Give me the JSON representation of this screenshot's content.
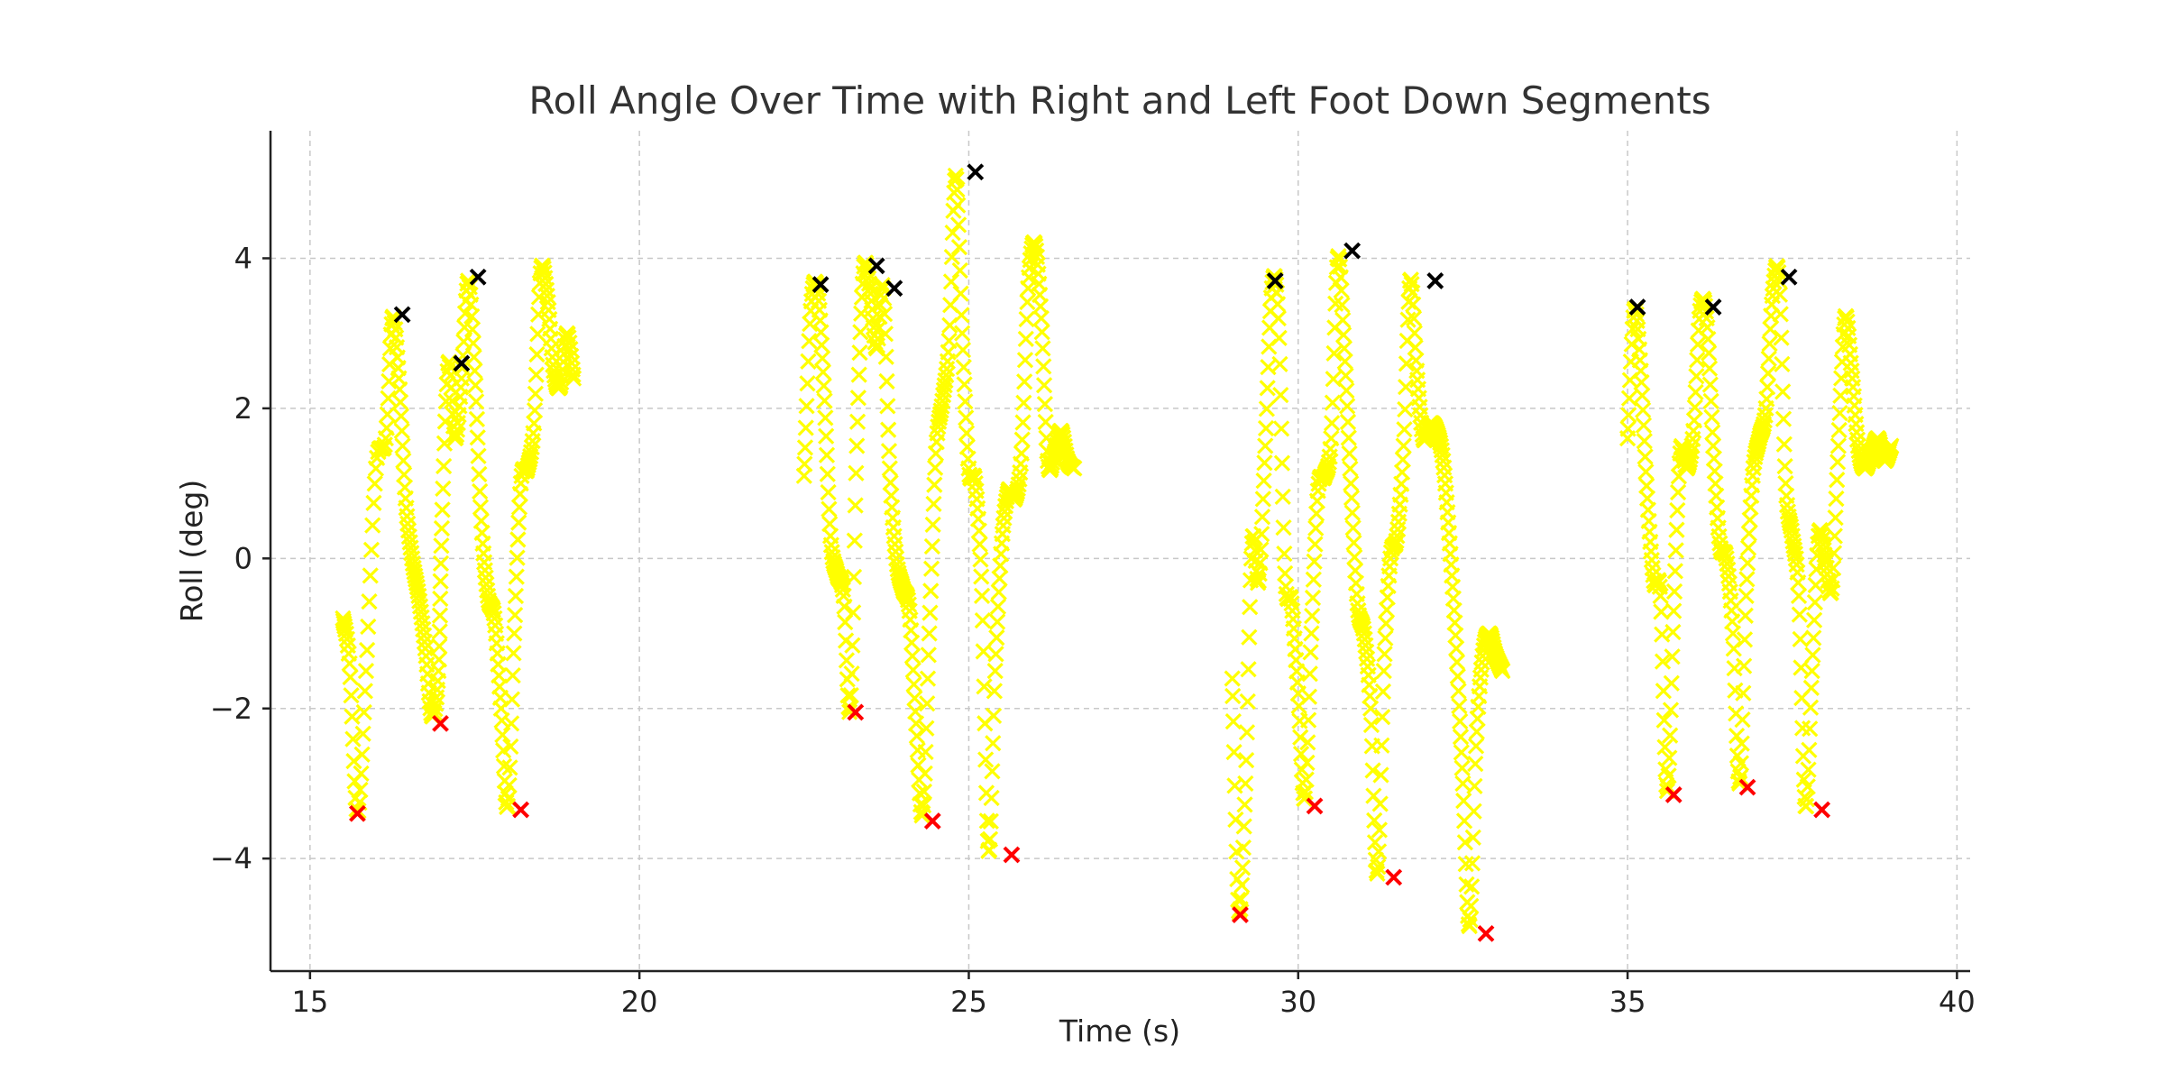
{
  "chart_data": {
    "type": "scatter",
    "title": "Roll Angle Over Time with Right and Left Foot Down Segments",
    "xlabel": "Time (s)",
    "ylabel": "Roll (deg)",
    "xlim": [
      14.4,
      40.2
    ],
    "ylim": [
      -5.5,
      5.7
    ],
    "xticks": [
      15,
      20,
      25,
      30,
      35,
      40
    ],
    "yticks": [
      -4,
      -2,
      0,
      2,
      4
    ],
    "ytick_labels": [
      "−4",
      "−2",
      "0",
      "2",
      "4"
    ],
    "grid": true,
    "marker": "x",
    "colors": {
      "roll": "#ffff00",
      "right_foot_down": "#ff0000",
      "left_foot_down": "#000000"
    },
    "segments": [
      {
        "x": [
          15.5,
          15.6,
          15.72,
          15.85,
          16.0,
          16.15,
          16.25,
          16.35,
          16.45,
          16.55,
          16.65,
          16.75,
          16.85,
          16.95,
          17.0,
          17.1,
          17.2,
          17.3,
          17.4,
          17.5,
          17.6,
          17.7,
          17.8,
          17.9,
          18.0,
          18.1,
          18.2,
          18.3,
          18.4,
          18.5,
          18.6,
          18.7,
          18.8,
          18.9,
          19.0
        ],
        "y": [
          -0.8,
          -1.4,
          -3.4,
          -1.5,
          1.2,
          1.6,
          3.2,
          2.4,
          0.8,
          0.0,
          -0.5,
          -1.2,
          -2.1,
          -1.5,
          0.4,
          2.6,
          1.6,
          2.4,
          3.7,
          2.5,
          0.5,
          -0.5,
          -0.8,
          -2.0,
          -3.3,
          -1.0,
          1.0,
          1.2,
          1.8,
          3.8,
          3.5,
          2.5,
          2.3,
          3.0,
          2.4
        ]
      },
      {
        "x": [
          22.5,
          22.6,
          22.7,
          22.8,
          22.9,
          23.0,
          23.1,
          23.2,
          23.3,
          23.4,
          23.5,
          23.6,
          23.7,
          23.8,
          23.9,
          24.0,
          24.1,
          24.2,
          24.3,
          24.4,
          24.5,
          24.6,
          24.7,
          24.8,
          24.9,
          25.0,
          25.1,
          25.2,
          25.3,
          25.4,
          25.5,
          25.6,
          25.7,
          25.8,
          25.9,
          26.0,
          26.1,
          26.2,
          26.3,
          26.4,
          26.5,
          26.6
        ],
        "y": [
          1.1,
          3.3,
          3.6,
          2.3,
          0.3,
          -0.2,
          -0.5,
          -2.0,
          1.5,
          3.8,
          3.6,
          2.8,
          3.6,
          1.2,
          0.0,
          -0.4,
          -0.7,
          -2.2,
          -3.4,
          -1.0,
          1.4,
          2.1,
          2.9,
          5.1,
          3.0,
          1.2,
          1.0,
          -0.5,
          -3.9,
          -1.5,
          0.2,
          0.9,
          0.8,
          1.4,
          3.6,
          4.2,
          3.2,
          1.3,
          1.4,
          1.7,
          1.3,
          1.2
        ]
      },
      {
        "x": [
          29.0,
          29.1,
          29.2,
          29.3,
          29.4,
          29.5,
          29.6,
          29.7,
          29.8,
          29.9,
          30.0,
          30.1,
          30.2,
          30.3,
          30.4,
          30.5,
          30.6,
          30.7,
          30.8,
          30.9,
          31.0,
          31.1,
          31.2,
          31.3,
          31.4,
          31.5,
          31.6,
          31.7,
          31.8,
          31.9,
          32.0,
          32.1,
          32.2,
          32.3,
          32.4,
          32.5,
          32.6,
          32.7,
          32.8,
          32.9,
          33.0,
          33.1
        ],
        "y": [
          -1.6,
          -4.7,
          -3.0,
          0.2,
          -0.3,
          1.5,
          3.6,
          3.2,
          -0.2,
          -0.6,
          -1.8,
          -3.2,
          -1.0,
          0.9,
          1.1,
          1.6,
          4.0,
          2.8,
          1.0,
          -0.6,
          -1.0,
          -2.0,
          -4.2,
          -1.5,
          0.0,
          0.3,
          1.5,
          3.7,
          2.5,
          1.6,
          1.8,
          1.7,
          1.3,
          0.2,
          -1.2,
          -3.0,
          -4.9,
          -2.5,
          -1.3,
          -1.0,
          -1.3,
          -1.5
        ]
      },
      {
        "x": [
          35.0,
          35.1,
          35.2,
          35.3,
          35.4,
          35.5,
          35.6,
          35.7,
          35.8,
          35.9,
          36.0,
          36.1,
          36.2,
          36.3,
          36.4,
          36.5,
          36.6,
          36.7,
          36.8,
          36.9,
          37.0,
          37.1,
          37.2,
          37.3,
          37.4,
          37.5,
          37.6,
          37.7,
          37.8,
          37.9,
          38.0,
          38.1,
          38.2,
          38.3,
          38.4,
          38.5,
          38.6,
          38.7,
          38.8,
          38.9,
          39.0
        ],
        "y": [
          1.6,
          3.3,
          2.5,
          0.8,
          -0.3,
          -0.5,
          -3.1,
          -0.7,
          1.4,
          1.2,
          1.7,
          3.3,
          3.2,
          1.5,
          0.2,
          0.0,
          -1.0,
          -3.0,
          -0.5,
          1.1,
          1.6,
          2.0,
          3.5,
          3.7,
          1.0,
          0.3,
          -0.5,
          -3.3,
          -1.5,
          0.3,
          0.0,
          -0.4,
          1.5,
          3.2,
          2.5,
          1.5,
          1.2,
          1.4,
          1.6,
          1.3,
          1.5
        ]
      }
    ],
    "right_foot_down": {
      "x": [
        15.72,
        16.98,
        18.2,
        23.28,
        24.45,
        25.65,
        29.12,
        30.25,
        31.45,
        32.85,
        35.7,
        36.82,
        37.95
      ],
      "y": [
        -3.4,
        -2.2,
        -3.35,
        -2.05,
        -3.5,
        -3.95,
        -4.75,
        -3.3,
        -4.25,
        -5.0,
        -3.15,
        -3.05,
        -3.35
      ]
    },
    "left_foot_down": {
      "x": [
        16.4,
        17.3,
        17.55,
        22.75,
        23.6,
        23.87,
        25.1,
        29.65,
        30.82,
        32.08,
        35.15,
        36.3,
        37.45
      ],
      "y": [
        3.25,
        2.6,
        3.75,
        3.65,
        3.9,
        3.6,
        5.15,
        3.7,
        4.1,
        3.7,
        3.35,
        3.35,
        3.75
      ]
    }
  }
}
